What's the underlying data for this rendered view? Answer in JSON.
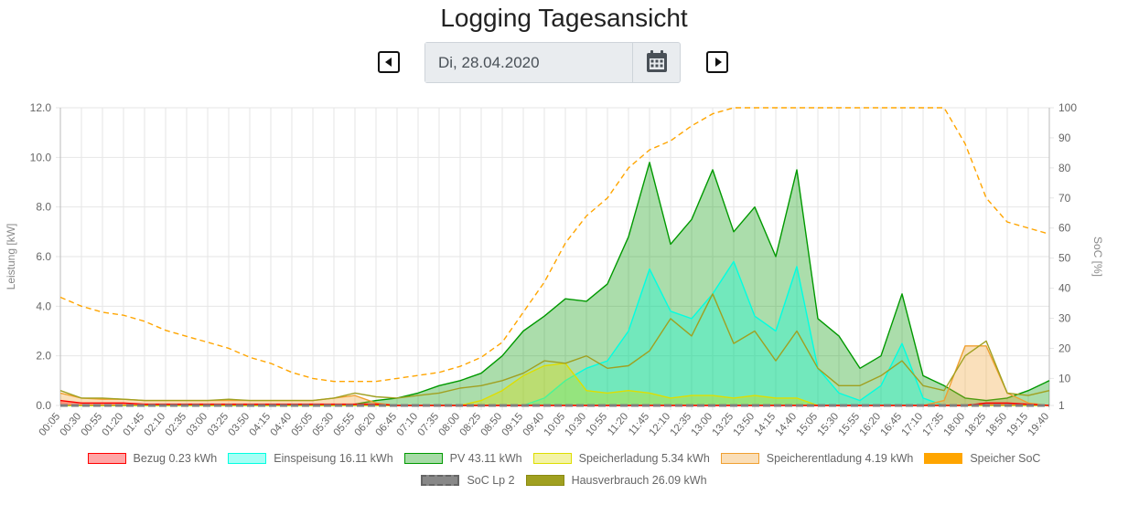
{
  "page": {
    "title": "Logging Tagesansicht",
    "date_value": "Di, 28.04.2020"
  },
  "icons": {
    "prev": "caret-left-square-icon",
    "next": "caret-right-square-icon",
    "calendar": "calendar-icon"
  },
  "colors": {
    "bezug": "#ff0000",
    "einspeisung": "#00ffe1",
    "pv": "#009900",
    "speicherladung": "#dede00",
    "speicherentladung": "#f0a030",
    "speicher_soc": "#ffa500",
    "soc_lp2": "#7f7f7f",
    "hausverbrauch": "#a0a020"
  },
  "legend": [
    {
      "label": "Bezug 0.23 kWh",
      "key": "bezug"
    },
    {
      "label": "Einspeisung 16.11 kWh",
      "key": "einspeisung"
    },
    {
      "label": "PV 43.11 kWh",
      "key": "pv"
    },
    {
      "label": "Speicherladung 5.34 kWh",
      "key": "speicherladung"
    },
    {
      "label": "Speicherentladung 4.19 kWh",
      "key": "speicherentladung"
    },
    {
      "label": "Speicher SoC",
      "key": "speicher_soc"
    },
    {
      "label": "SoC Lp 2",
      "key": "soc_lp2"
    },
    {
      "label": "Hausverbrauch 26.09 kWh",
      "key": "hausverbrauch"
    }
  ],
  "chart_data": {
    "type": "area",
    "ylabel": "Leistung [kW]",
    "y2label": "SoC [%]",
    "ylim": [
      0,
      12
    ],
    "y2lim": [
      1,
      100
    ],
    "y_ticks": [
      "0.0",
      "2.0",
      "4.0",
      "6.0",
      "8.0",
      "10.0",
      "12.0"
    ],
    "y2_ticks": [
      "1",
      "10",
      "20",
      "30",
      "40",
      "50",
      "60",
      "70",
      "80",
      "90",
      "100"
    ],
    "grid": true,
    "legend_position": "bottom",
    "x": [
      "00:05",
      "00:30",
      "00:55",
      "01:20",
      "01:45",
      "02:10",
      "02:35",
      "03:00",
      "03:25",
      "03:50",
      "04:15",
      "04:40",
      "05:05",
      "05:30",
      "05:55",
      "06:20",
      "06:45",
      "07:10",
      "07:35",
      "08:00",
      "08:25",
      "08:50",
      "09:15",
      "09:40",
      "10:05",
      "10:30",
      "10:55",
      "11:20",
      "11:45",
      "12:10",
      "12:35",
      "13:00",
      "13:25",
      "13:50",
      "14:15",
      "14:40",
      "15:05",
      "15:30",
      "15:55",
      "16:20",
      "16:45",
      "17:10",
      "17:35",
      "18:00",
      "18:25",
      "18:50",
      "19:15",
      "19:40"
    ],
    "series": [
      {
        "name": "Bezug 0.23 kWh",
        "key": "bezug",
        "axis": "left",
        "fill": true,
        "values": [
          0.2,
          0.1,
          0.1,
          0.1,
          0.05,
          0.05,
          0.05,
          0.05,
          0.05,
          0.05,
          0.05,
          0.05,
          0.05,
          0.05,
          0.05,
          0.05,
          0,
          0,
          0,
          0,
          0,
          0,
          0,
          0,
          0,
          0,
          0,
          0,
          0,
          0,
          0,
          0,
          0,
          0,
          0,
          0,
          0,
          0,
          0,
          0,
          0,
          0,
          0,
          0,
          0.1,
          0.1,
          0.05,
          0
        ]
      },
      {
        "name": "Einspeisung 16.11 kWh",
        "key": "einspeisung",
        "axis": "left",
        "fill": true,
        "values": [
          0,
          0,
          0,
          0,
          0,
          0,
          0,
          0,
          0,
          0,
          0,
          0,
          0,
          0,
          0,
          0,
          0,
          0,
          0,
          0,
          0,
          0,
          0,
          0.3,
          1.0,
          1.5,
          1.8,
          3.0,
          5.5,
          3.8,
          3.5,
          4.5,
          5.8,
          3.6,
          3.0,
          5.6,
          1.5,
          0.5,
          0.2,
          0.8,
          2.5,
          0.3,
          0,
          0,
          0,
          0,
          0,
          0
        ]
      },
      {
        "name": "PV 43.11 kWh",
        "key": "pv",
        "axis": "left",
        "fill": true,
        "values": [
          0,
          0,
          0,
          0,
          0,
          0,
          0,
          0,
          0,
          0,
          0,
          0,
          0,
          0,
          0.05,
          0.2,
          0.3,
          0.5,
          0.8,
          1.0,
          1.3,
          2.0,
          3.0,
          3.6,
          4.3,
          4.2,
          4.9,
          6.8,
          9.8,
          6.5,
          7.5,
          9.5,
          7.0,
          8.0,
          6.0,
          9.5,
          3.5,
          2.8,
          1.5,
          2.0,
          4.5,
          1.2,
          0.8,
          0.3,
          0.2,
          0.3,
          0.6,
          1.0
        ]
      },
      {
        "name": "Speicherladung 5.34 kWh",
        "key": "speicherladung",
        "axis": "left",
        "fill": true,
        "values": [
          0,
          0,
          0,
          0,
          0,
          0,
          0,
          0,
          0,
          0,
          0,
          0,
          0,
          0,
          0,
          0,
          0,
          0,
          0,
          0,
          0.2,
          0.6,
          1.2,
          1.6,
          1.7,
          0.6,
          0.5,
          0.6,
          0.5,
          0.3,
          0.4,
          0.4,
          0.3,
          0.4,
          0.3,
          0.3,
          0,
          0,
          0,
          0,
          0,
          0,
          0,
          0,
          0,
          0,
          0,
          0
        ]
      },
      {
        "name": "Speicherentladung 4.19 kWh",
        "key": "speicherentladung",
        "axis": "left",
        "fill": true,
        "values": [
          0.5,
          0.3,
          0.25,
          0.25,
          0.2,
          0.2,
          0.2,
          0.2,
          0.2,
          0.2,
          0.2,
          0.2,
          0.2,
          0.3,
          0.4,
          0.1,
          0,
          0,
          0,
          0,
          0,
          0,
          0,
          0,
          0,
          0,
          0,
          0,
          0,
          0,
          0,
          0,
          0,
          0,
          0,
          0,
          0,
          0,
          0,
          0,
          0,
          0,
          0.2,
          2.4,
          2.4,
          0.5,
          0.1,
          0
        ]
      },
      {
        "name": "Speicher SoC",
        "key": "speicher_soc",
        "axis": "right",
        "fill": false,
        "dashed": true,
        "values": [
          37,
          34,
          32,
          31,
          29,
          26,
          24,
          22,
          20,
          17,
          15,
          12,
          10,
          9,
          9,
          9,
          10,
          11,
          12,
          14,
          17,
          22,
          32,
          42,
          55,
          64,
          70,
          80,
          86,
          89,
          94,
          98,
          100,
          100,
          100,
          100,
          100,
          100,
          100,
          100,
          100,
          100,
          100,
          88,
          70,
          62,
          60,
          58
        ]
      },
      {
        "name": "SoC Lp 2",
        "key": "soc_lp2",
        "axis": "right",
        "fill": false,
        "dashed": true,
        "values": [
          1,
          1,
          1,
          1,
          1,
          1,
          1,
          1,
          1,
          1,
          1,
          1,
          1,
          1,
          1,
          1,
          1,
          1,
          1,
          1,
          1,
          1,
          1,
          1,
          1,
          1,
          1,
          1,
          1,
          1,
          1,
          1,
          1,
          1,
          1,
          1,
          1,
          1,
          1,
          1,
          1,
          1,
          1,
          1,
          1,
          1,
          1,
          1
        ]
      },
      {
        "name": "Hausverbrauch 26.09 kWh",
        "key": "hausverbrauch",
        "axis": "left",
        "fill": false,
        "values": [
          0.6,
          0.3,
          0.3,
          0.25,
          0.2,
          0.2,
          0.2,
          0.2,
          0.25,
          0.2,
          0.2,
          0.2,
          0.2,
          0.3,
          0.5,
          0.35,
          0.3,
          0.4,
          0.5,
          0.7,
          0.8,
          1.0,
          1.3,
          1.8,
          1.7,
          2.0,
          1.5,
          1.6,
          2.2,
          3.5,
          2.8,
          4.5,
          2.5,
          3.0,
          1.8,
          3.0,
          1.5,
          0.8,
          0.8,
          1.2,
          1.8,
          0.8,
          0.6,
          2.0,
          2.6,
          0.5,
          0.4,
          0.6
        ]
      }
    ]
  }
}
